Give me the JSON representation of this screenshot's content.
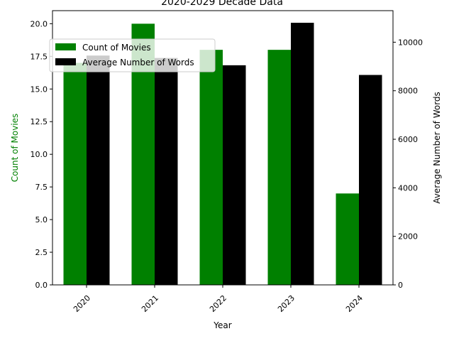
{
  "chart_data": {
    "type": "bar",
    "title": "2020-2029 Decade Data",
    "xlabel": "Year",
    "categories": [
      "2020",
      "2021",
      "2022",
      "2023",
      "2024"
    ],
    "series": [
      {
        "name": "Count of Movies",
        "axis": "left",
        "color": "#008000",
        "values": [
          17,
          20,
          18,
          18,
          7
        ]
      },
      {
        "name": "Average Number of Words",
        "axis": "right",
        "color": "#000000",
        "values": [
          9450,
          9350,
          9050,
          10800,
          8650
        ]
      }
    ],
    "y_left": {
      "label": "Count of Movies",
      "label_color": "#008000",
      "ylim": [
        0,
        21
      ],
      "ticks": [
        "0.0",
        "2.5",
        "5.0",
        "7.5",
        "10.0",
        "12.5",
        "15.0",
        "17.5",
        "20.0"
      ]
    },
    "y_right": {
      "label": "Average Number of Words",
      "ylim": [
        0,
        11300
      ],
      "ticks": [
        "0",
        "2000",
        "4000",
        "6000",
        "8000",
        "10000"
      ]
    },
    "legend": "top-left",
    "grid": false
  }
}
